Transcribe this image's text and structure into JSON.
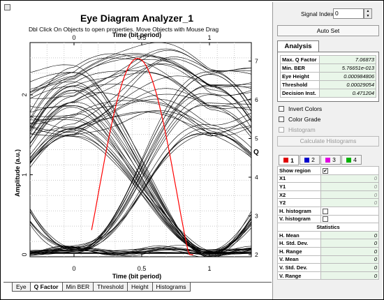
{
  "window": {
    "title": "Eye Diagram Analyzer_1",
    "hint": "Dbl Click On Objects to open properties.  Move Objects with Mouse Drag"
  },
  "plot": {
    "top_axis_label": "Time (bit period)",
    "bottom_axis_label": "Time (bit period)",
    "left_axis_label": "Amplitude (a.u.)",
    "right_axis_label": "Q",
    "x_ticks": [
      "0",
      "0.5",
      "1"
    ],
    "y_ticks": [
      "0",
      "1",
      "2"
    ],
    "q_ticks": [
      "2",
      "3",
      "4",
      "5",
      "6",
      "7"
    ],
    "trace_color": "#000000",
    "q_curve_color": "#ff0000"
  },
  "tabs": [
    "Eye",
    "Q Factor",
    "Min BER",
    "Threshold",
    "Height",
    "Histograms"
  ],
  "active_tab": "Q Factor",
  "side": {
    "signal_index_label": "Signal Index:",
    "signal_index_value": "0",
    "autoset_label": "Auto Set",
    "analysis_tab": "Analysis",
    "analysis": [
      {
        "key": "Max. Q Factor",
        "value": "7.06873"
      },
      {
        "key": "Min. BER",
        "value": "5.76651e-013"
      },
      {
        "key": "Eye Height",
        "value": "0.000984806"
      },
      {
        "key": "Threshold",
        "value": "0.00029054"
      },
      {
        "key": "Decision Inst.",
        "value": "0.471204"
      }
    ],
    "invert_colors": "Invert Colors",
    "color_grade": "Color Grade",
    "histogram": "Histogram",
    "calc_histograms": "Calculate Histograms",
    "signal_tabs": [
      {
        "label": "1",
        "color": "#e00000"
      },
      {
        "label": "2",
        "color": "#0000cc"
      },
      {
        "label": "3",
        "color": "#e000e0"
      },
      {
        "label": "4",
        "color": "#00b000"
      }
    ],
    "region": {
      "show_region": "Show region",
      "x1": "X1",
      "y1": "Y1",
      "x2": "X2",
      "y2": "Y2",
      "x1_val": "0",
      "y1_val": "0",
      "x2_val": "0",
      "y2_val": "0",
      "h_hist": "H. histogram",
      "v_hist": "V. histogram",
      "stats_header": "Statistics",
      "stats": [
        {
          "key": "H. Mean",
          "value": "0"
        },
        {
          "key": "H. Std. Dev.",
          "value": "0"
        },
        {
          "key": "H. Range",
          "value": "0"
        },
        {
          "key": "V. Mean",
          "value": "0"
        },
        {
          "key": "V. Std. Dev.",
          "value": "0"
        },
        {
          "key": "V. Range",
          "value": "0"
        }
      ]
    }
  }
}
